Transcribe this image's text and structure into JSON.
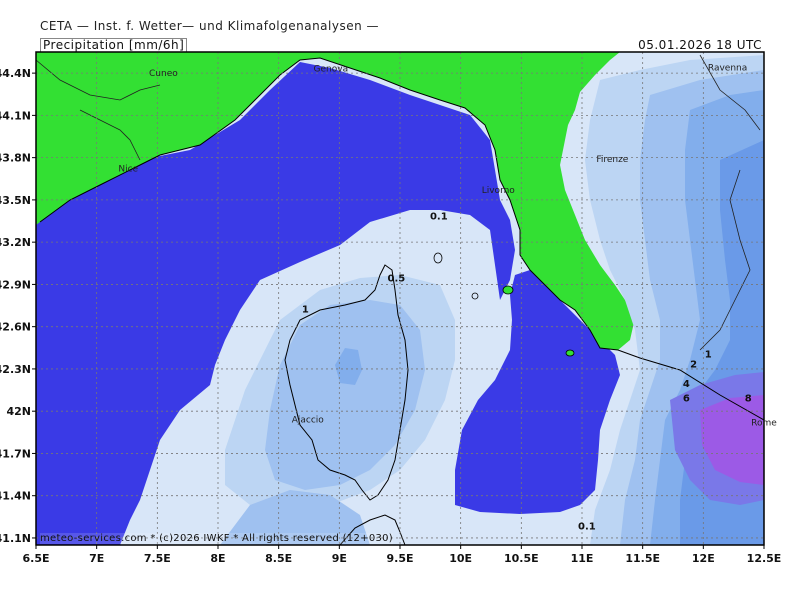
{
  "header": {
    "top_title": "CETA — Inst. f. Wetter— und Klimafolgenanalysen —",
    "parameter": "Precipitation [mm/6h]",
    "timestamp": "05.01.2026 18 UTC"
  },
  "footer": {
    "credit": "meteo-services.com * (c)2026 IWKF * All rights reserved (12+030)"
  },
  "axes": {
    "lat_labels": [
      "44.4N",
      "44.1N",
      "43.8N",
      "43.5N",
      "43.2N",
      "42.9N",
      "42.6N",
      "42.3N",
      "42N",
      "41.7N",
      "41.4N",
      "41.1N"
    ],
    "lon_labels": [
      "6.5E",
      "7E",
      "7.5E",
      "8E",
      "8.5E",
      "9E",
      "9.5E",
      "10E",
      "10.5E",
      "11E",
      "11.5E",
      "12E",
      "12.5E"
    ]
  },
  "cities": [
    {
      "name": "Genova",
      "lon": 8.93,
      "lat": 44.41
    },
    {
      "name": "Cuneo",
      "lon": 7.55,
      "lat": 44.38
    },
    {
      "name": "Nice",
      "lon": 7.26,
      "lat": 43.7
    },
    {
      "name": "Ravenna",
      "lon": 12.2,
      "lat": 44.42
    },
    {
      "name": "Firenze",
      "lon": 11.25,
      "lat": 43.77
    },
    {
      "name": "Livorno",
      "lon": 10.31,
      "lat": 43.55
    },
    {
      "name": "Ajaccio",
      "lon": 8.74,
      "lat": 41.92
    },
    {
      "name": "Rome",
      "lon": 12.5,
      "lat": 41.9
    }
  ],
  "contour_labels": [
    {
      "text": "0.1",
      "lon": 9.82,
      "lat": 43.36
    },
    {
      "text": "0.5",
      "lon": 9.47,
      "lat": 42.92
    },
    {
      "text": "1",
      "lon": 8.72,
      "lat": 42.7
    },
    {
      "text": "0.1",
      "lon": 11.04,
      "lat": 41.16
    },
    {
      "text": "1",
      "lon": 12.04,
      "lat": 42.38
    },
    {
      "text": "2",
      "lon": 11.92,
      "lat": 42.31
    },
    {
      "text": "4",
      "lon": 11.86,
      "lat": 42.17
    },
    {
      "text": "6",
      "lon": 11.86,
      "lat": 42.07
    },
    {
      "text": "8",
      "lon": 12.37,
      "lat": 42.07
    }
  ],
  "legend_colors": {
    "land_dry": "#33e033",
    "sea_dry": "#3a3ae6",
    "p0_1": "#d8e6f8",
    "p0_5": "#bcd5f3",
    "p1": "#9fc1f0",
    "p2": "#82aeec",
    "p4": "#6a9ae8",
    "p6": "#7a78e8",
    "p8": "#9c5ae6"
  }
}
